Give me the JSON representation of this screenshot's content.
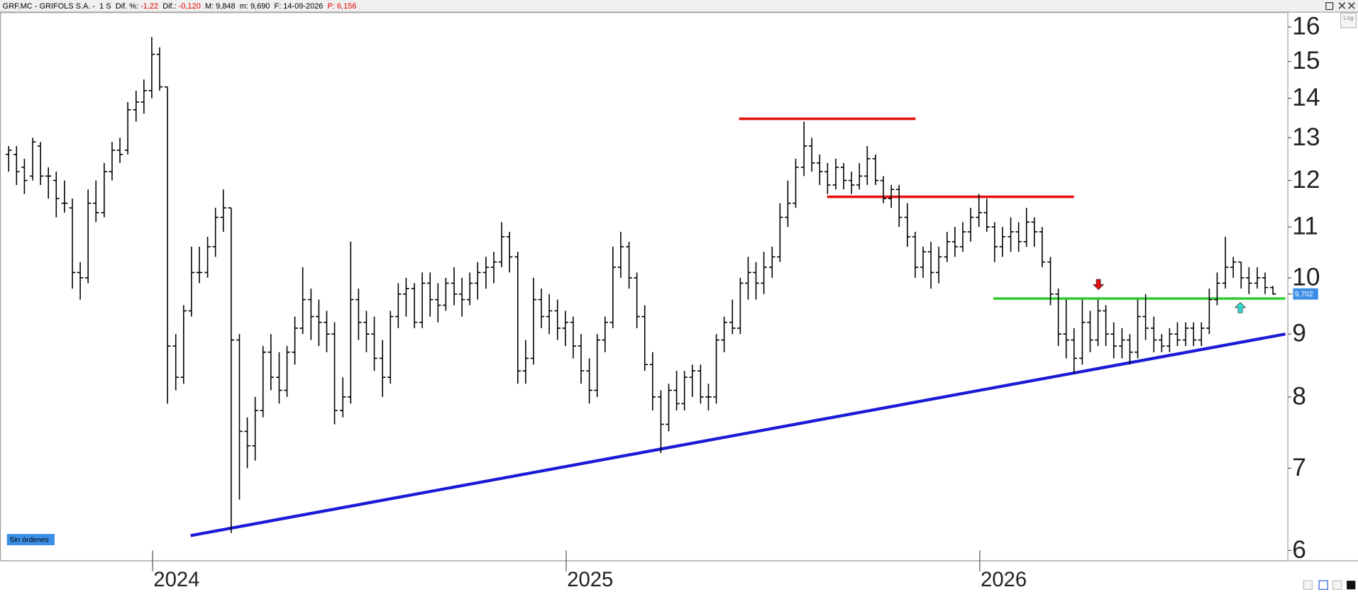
{
  "chart_data": {
    "type": "ohlc",
    "header": [
      {
        "text": "GRF.MC - GRIFOLS S.A. -  1 S  Dif. %: ",
        "color": "#000000"
      },
      {
        "text": "-1,22",
        "color": "#e00000"
      },
      {
        "text": "  Dif.: ",
        "color": "#000000"
      },
      {
        "text": "-0,120",
        "color": "#e00000"
      },
      {
        "text": "  M: 9,848  m: 9,690  F: 14-09-2026  ",
        "color": "#000000"
      },
      {
        "text": "P: 6,156",
        "color": "#e00000"
      }
    ],
    "log_scale": true,
    "color": "#000000",
    "xlim": [
      2023.631,
      2026.745
    ],
    "xticks": [
      2024,
      2025,
      2026
    ],
    "ylim": [
      5.885,
      16.45
    ],
    "yticks": [
      6,
      7,
      8,
      9,
      10,
      11,
      12,
      13,
      14,
      15,
      16
    ],
    "x": [
      2023.652,
      2023.671,
      2023.69,
      2023.71,
      2023.729,
      2023.748,
      2023.767,
      2023.787,
      2023.806,
      2023.825,
      2023.844,
      2023.863,
      2023.883,
      2023.902,
      2023.921,
      2023.94,
      2023.96,
      2023.979,
      2023.998,
      2024.017,
      2024.036,
      2024.056,
      2024.075,
      2024.094,
      2024.113,
      2024.133,
      2024.152,
      2024.171,
      2024.19,
      2024.21,
      2024.229,
      2024.248,
      2024.267,
      2024.286,
      2024.306,
      2024.325,
      2024.344,
      2024.363,
      2024.383,
      2024.402,
      2024.421,
      2024.44,
      2024.46,
      2024.479,
      2024.498,
      2024.517,
      2024.536,
      2024.556,
      2024.575,
      2024.594,
      2024.613,
      2024.633,
      2024.652,
      2024.671,
      2024.69,
      2024.709,
      2024.729,
      2024.748,
      2024.767,
      2024.786,
      2024.806,
      2024.825,
      2024.844,
      2024.863,
      2024.883,
      2024.902,
      2024.921,
      2024.94,
      2024.959,
      2024.979,
      2024.998,
      2025.017,
      2025.036,
      2025.056,
      2025.075,
      2025.094,
      2025.113,
      2025.132,
      2025.152,
      2025.171,
      2025.19,
      2025.209,
      2025.229,
      2025.248,
      2025.267,
      2025.286,
      2025.305,
      2025.325,
      2025.344,
      2025.363,
      2025.382,
      2025.402,
      2025.421,
      2025.44,
      2025.459,
      2025.478,
      2025.498,
      2025.517,
      2025.536,
      2025.555,
      2025.575,
      2025.594,
      2025.613,
      2025.632,
      2025.652,
      2025.671,
      2025.69,
      2025.709,
      2025.728,
      2025.748,
      2025.767,
      2025.786,
      2025.805,
      2025.825,
      2025.844,
      2025.863,
      2025.882,
      2025.901,
      2025.921,
      2025.94,
      2025.959,
      2025.978,
      2025.998,
      2026.017,
      2026.036,
      2026.055,
      2026.075,
      2026.094,
      2026.113,
      2026.132,
      2026.151,
      2026.171,
      2026.19,
      2026.209,
      2026.228,
      2026.248,
      2026.267,
      2026.286,
      2026.305,
      2026.324,
      2026.344,
      2026.363,
      2026.382,
      2026.401,
      2026.421,
      2026.44,
      2026.459,
      2026.478,
      2026.498,
      2026.517,
      2026.536,
      2026.555,
      2026.574,
      2026.594,
      2026.613,
      2026.632,
      2026.651,
      2026.671,
      2026.69,
      2026.709
    ],
    "open": [
      12.6,
      12.6,
      12.3,
      12.1,
      12.8,
      12.1,
      12.0,
      11.5,
      11.4,
      10.1,
      10.0,
      11.5,
      11.3,
      12.2,
      12.7,
      12.7,
      13.7,
      13.9,
      14.2,
      15.2,
      14.3,
      8.8,
      8.3,
      9.4,
      10.1,
      10.1,
      10.6,
      11.2,
      11.4,
      8.9,
      7.5,
      7.3,
      7.8,
      8.7,
      8.3,
      8.1,
      8.7,
      9.1,
      9.6,
      9.3,
      9.2,
      9.0,
      7.8,
      8.0,
      9.6,
      9.2,
      9.0,
      8.6,
      8.3,
      9.3,
      9.7,
      9.8,
      9.2,
      9.9,
      9.6,
      9.5,
      9.9,
      9.7,
      9.6,
      9.9,
      10.1,
      10.2,
      10.3,
      10.8,
      10.4,
      8.4,
      8.6,
      9.6,
      9.3,
      9.4,
      9.1,
      9.2,
      8.8,
      8.4,
      8.1,
      8.9,
      9.2,
      10.2,
      10.6,
      10.0,
      9.3,
      8.5,
      8.0,
      7.6,
      8.1,
      7.9,
      8.3,
      8.4,
      8.0,
      8.0,
      8.9,
      9.2,
      9.1,
      9.9,
      10.1,
      9.9,
      10.2,
      10.4,
      11.2,
      11.5,
      12.3,
      12.8,
      12.4,
      12.2,
      11.9,
      12.3,
      12.0,
      11.9,
      12.1,
      12.5,
      12.0,
      11.6,
      11.8,
      11.2,
      10.8,
      10.2,
      10.5,
      10.1,
      10.4,
      10.7,
      10.6,
      10.9,
      11.2,
      11.3,
      11.0,
      10.6,
      10.8,
      10.9,
      10.7,
      11.1,
      10.9,
      10.3,
      9.7,
      9.0,
      8.9,
      8.6,
      9.2,
      8.9,
      9.4,
      9.0,
      8.8,
      8.9,
      8.7,
      9.3,
      9.1,
      8.9,
      8.8,
      9.0,
      8.9,
      9.1,
      8.9,
      9.1,
      9.6,
      9.9,
      10.2,
      10.3,
      10.0,
      9.9,
      10.0,
      9.82
    ],
    "high": [
      12.8,
      12.8,
      12.5,
      13.0,
      12.9,
      12.3,
      12.2,
      12.0,
      11.6,
      10.3,
      11.8,
      12.0,
      12.4,
      12.9,
      13.0,
      13.9,
      14.2,
      14.5,
      15.7,
      15.4,
      14.3,
      9.0,
      9.5,
      10.6,
      10.6,
      10.8,
      11.4,
      11.8,
      11.4,
      9.0,
      7.7,
      8.0,
      8.8,
      9.0,
      8.7,
      8.8,
      9.3,
      10.2,
      9.8,
      9.6,
      9.4,
      9.2,
      8.3,
      10.7,
      9.8,
      9.4,
      9.3,
      8.9,
      9.4,
      9.9,
      10.0,
      9.9,
      10.1,
      10.1,
      9.9,
      10.0,
      10.2,
      10.0,
      10.1,
      10.3,
      10.4,
      10.5,
      11.1,
      10.9,
      10.5,
      8.9,
      10.0,
      9.8,
      9.7,
      9.6,
      9.4,
      9.3,
      9.0,
      8.6,
      9.0,
      9.3,
      10.6,
      10.9,
      10.7,
      10.1,
      9.5,
      8.7,
      8.1,
      8.2,
      8.4,
      8.4,
      8.5,
      8.5,
      8.2,
      9.0,
      9.3,
      9.6,
      10.0,
      10.4,
      10.3,
      10.5,
      10.6,
      11.5,
      12.0,
      12.5,
      13.4,
      13.0,
      12.6,
      12.4,
      12.5,
      12.4,
      12.2,
      12.4,
      12.8,
      12.6,
      12.1,
      11.9,
      11.9,
      11.5,
      10.9,
      10.6,
      10.7,
      10.6,
      10.9,
      11.0,
      11.1,
      11.4,
      11.7,
      11.6,
      11.1,
      11.0,
      11.2,
      11.1,
      11.4,
      11.2,
      11.0,
      10.4,
      9.8,
      9.6,
      9.1,
      9.6,
      9.4,
      9.6,
      9.5,
      9.2,
      9.1,
      9.0,
      9.6,
      9.7,
      9.3,
      9.0,
      9.1,
      9.2,
      9.2,
      9.2,
      9.2,
      9.8,
      10.1,
      10.8,
      10.4,
      10.3,
      10.2,
      10.2,
      10.1,
      9.848
    ],
    "low": [
      12.2,
      11.9,
      11.7,
      12.0,
      11.9,
      11.6,
      11.2,
      11.3,
      9.8,
      9.6,
      9.9,
      11.1,
      11.2,
      12.0,
      12.4,
      12.6,
      13.4,
      13.6,
      14.0,
      14.2,
      7.9,
      8.1,
      8.2,
      9.3,
      9.9,
      10.0,
      10.4,
      10.9,
      6.2,
      6.6,
      7.0,
      7.1,
      7.7,
      8.1,
      7.9,
      8.0,
      8.5,
      9.0,
      8.9,
      8.8,
      8.7,
      7.6,
      7.7,
      7.9,
      8.9,
      8.7,
      8.4,
      8.0,
      8.2,
      9.1,
      9.3,
      9.1,
      9.1,
      9.3,
      9.2,
      9.4,
      9.5,
      9.3,
      9.5,
      9.6,
      9.8,
      9.9,
      10.2,
      10.1,
      8.2,
      8.2,
      8.5,
      9.1,
      9.0,
      8.9,
      8.8,
      8.6,
      8.2,
      7.9,
      8.0,
      8.7,
      9.1,
      10.0,
      9.8,
      9.1,
      8.4,
      7.8,
      7.2,
      7.5,
      7.8,
      7.8,
      8.0,
      7.9,
      7.8,
      7.9,
      8.7,
      9.0,
      9.0,
      9.6,
      9.6,
      9.7,
      10.0,
      10.3,
      11.0,
      11.4,
      12.1,
      12.2,
      11.9,
      11.7,
      11.8,
      11.8,
      11.7,
      11.8,
      11.9,
      11.9,
      11.5,
      11.4,
      11.0,
      10.6,
      10.0,
      10.0,
      9.8,
      9.9,
      10.3,
      10.4,
      10.5,
      10.7,
      11.0,
      10.9,
      10.3,
      10.4,
      10.5,
      10.5,
      10.6,
      10.6,
      10.2,
      9.5,
      8.8,
      8.6,
      8.35,
      8.5,
      8.7,
      8.8,
      8.8,
      8.6,
      8.6,
      8.5,
      8.6,
      8.9,
      8.7,
      8.7,
      8.7,
      8.8,
      8.8,
      8.8,
      8.8,
      9.0,
      9.5,
      9.8,
      10.0,
      9.8,
      9.7,
      9.8,
      9.7,
      9.69
    ],
    "close": [
      12.7,
      12.2,
      12.0,
      12.9,
      12.1,
      12.1,
      11.6,
      11.5,
      10.1,
      10.0,
      11.5,
      11.3,
      12.2,
      12.7,
      12.6,
      13.7,
      13.9,
      14.2,
      15.2,
      14.3,
      8.8,
      8.3,
      9.4,
      10.1,
      10.1,
      10.6,
      11.2,
      11.4,
      8.9,
      7.5,
      7.3,
      7.8,
      8.7,
      8.3,
      8.1,
      8.7,
      9.1,
      9.6,
      9.3,
      9.2,
      9.0,
      7.8,
      8.0,
      9.6,
      9.2,
      9.0,
      8.6,
      8.3,
      9.3,
      9.7,
      9.8,
      9.2,
      9.9,
      9.6,
      9.5,
      9.9,
      9.7,
      9.6,
      9.9,
      10.1,
      10.2,
      10.3,
      10.8,
      10.4,
      8.4,
      8.6,
      9.6,
      9.3,
      9.4,
      9.1,
      9.2,
      8.8,
      8.4,
      8.1,
      8.9,
      9.2,
      10.2,
      10.6,
      10.0,
      9.3,
      8.5,
      8.0,
      7.6,
      8.1,
      7.9,
      8.3,
      8.4,
      8.0,
      8.0,
      8.9,
      9.2,
      9.1,
      9.9,
      10.1,
      9.9,
      10.2,
      10.4,
      11.2,
      11.5,
      12.3,
      12.8,
      12.4,
      12.2,
      11.9,
      12.3,
      12.0,
      11.9,
      12.1,
      12.5,
      12.0,
      11.6,
      11.8,
      11.2,
      10.8,
      10.2,
      10.5,
      10.1,
      10.4,
      10.7,
      10.6,
      10.9,
      11.2,
      11.3,
      11.0,
      10.6,
      10.8,
      10.9,
      10.7,
      11.1,
      10.9,
      10.3,
      9.7,
      9.0,
      8.9,
      8.6,
      9.2,
      8.9,
      9.4,
      9.0,
      8.8,
      8.9,
      8.7,
      9.3,
      9.1,
      8.9,
      8.8,
      9.0,
      8.9,
      9.1,
      8.9,
      9.1,
      9.6,
      9.9,
      10.2,
      10.3,
      10.0,
      9.9,
      10.0,
      9.82,
      9.702
    ],
    "last_price": {
      "value": 9.702,
      "label": "9,702"
    },
    "hlines": [
      {
        "value": 13.47,
        "x": [
          2025.418,
          2025.845
        ],
        "color": "#e81010"
      },
      {
        "value": 11.64,
        "x": [
          2025.631,
          2026.228
        ],
        "color": "#e81010"
      },
      {
        "value": 9.62,
        "x": [
          2026.033,
          2026.739
        ],
        "color": "#33cc33"
      }
    ],
    "trendline": {
      "x": [
        2024.092,
        2026.739
      ],
      "y": [
        6.17,
        9.0
      ],
      "color": "#1a1ad6"
    },
    "signals": [
      {
        "x": 2026.287,
        "y": 9.78,
        "dir": "down",
        "color": "#e01010"
      },
      {
        "x": 2026.63,
        "y": 9.55,
        "dir": "up",
        "color": "#30d8d0"
      }
    ]
  },
  "ui": {
    "orders_label": "Sin órdenes",
    "log_button": "Log"
  }
}
